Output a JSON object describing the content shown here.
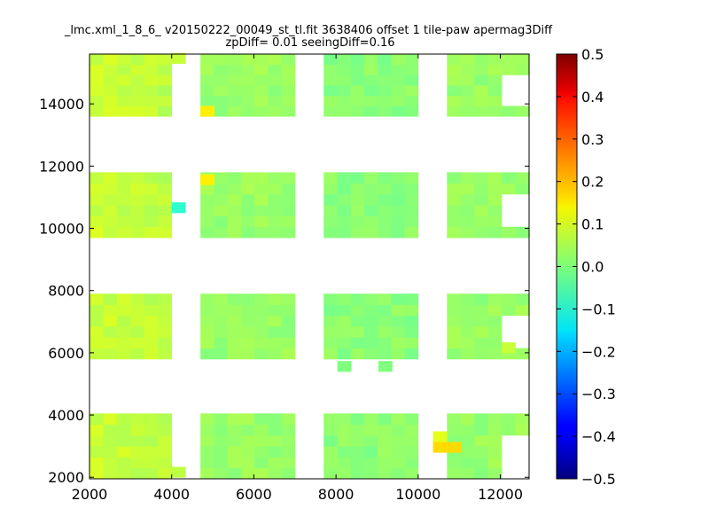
{
  "chart_data": {
    "type": "heatmap",
    "title": "_lmc.xml_1_8_6_ v20150222_00049_st_tl.fit 3638406 offset 1 tile-paw apermag3Diff",
    "subtitle": "zpDiff= 0.01 seeingDiff=0.16",
    "xlabel": "",
    "ylabel": "",
    "xlim": [
      2000,
      12700
    ],
    "ylim": [
      1950,
      15600
    ],
    "x_ticks": [
      "2000",
      "4000",
      "6000",
      "8000",
      "10000",
      "12000"
    ],
    "y_ticks": [
      "2000",
      "4000",
      "6000",
      "8000",
      "10000",
      "12000",
      "14000"
    ],
    "colorbar": {
      "colormap": "jet",
      "range": [
        -0.5,
        0.5
      ],
      "ticks": [
        "0.5",
        "0.4",
        "0.3",
        "0.2",
        "0.1",
        "0.0",
        "−0.1",
        "−0.2",
        "−0.3",
        "−0.4",
        "−0.5"
      ]
    },
    "cell_size": {
      "dx": 333,
      "dy": 335
    },
    "column_blocks": [
      {
        "x0": 2000,
        "x1": 4000,
        "cols": 6,
        "seed": 0.055
      },
      {
        "x0": 4700,
        "x1": 7000,
        "cols": 7,
        "seed": 0.025
      },
      {
        "x0": 7700,
        "x1": 10000,
        "cols": 7,
        "seed": 0.01
      },
      {
        "x0": 10700,
        "x1": 12700,
        "cols": 6,
        "seed": 0.025
      }
    ],
    "row_blocks": [
      {
        "y0": 13600,
        "y1": 15600,
        "rows": 6
      },
      {
        "y0": 9700,
        "y1": 11800,
        "rows": 6
      },
      {
        "y0": 5800,
        "y1": 7900,
        "rows": 6
      },
      {
        "y0": 1950,
        "y1": 4050,
        "rows": 6
      }
    ],
    "overrides": [
      {
        "x": 4700,
        "y": 13600,
        "value": 0.14
      },
      {
        "x": 4700,
        "y": 11400,
        "value": 0.14
      },
      {
        "x": 4000,
        "y": 10500,
        "value": -0.08
      },
      {
        "x": 10700,
        "y": 2800,
        "value": 0.16
      },
      {
        "x": 10360,
        "y": 3140,
        "value": 0.1
      },
      {
        "x": 10360,
        "y": 2800,
        "value": 0.16
      },
      {
        "x": 4000,
        "y": 2000,
        "value": 0.06
      },
      {
        "x": 3667,
        "y": 9700,
        "value": 0.08
      },
      {
        "x": 12033,
        "y": 6000,
        "value": 0.07
      },
      {
        "x": 8033,
        "y": 5400,
        "value": 0.0
      },
      {
        "x": 9033,
        "y": 5400,
        "value": 0.0
      },
      {
        "x": 4000,
        "y": 15300,
        "value": 0.07
      }
    ],
    "blank_cells": [
      {
        "x": 12033,
        "y": 14600
      },
      {
        "x": 12367,
        "y": 14600
      },
      {
        "x": 12033,
        "y": 14265
      },
      {
        "x": 12367,
        "y": 14265
      },
      {
        "x": 12033,
        "y": 13930
      },
      {
        "x": 12367,
        "y": 13930
      },
      {
        "x": 12033,
        "y": 10700
      },
      {
        "x": 12367,
        "y": 10700
      },
      {
        "x": 12033,
        "y": 10365
      },
      {
        "x": 12367,
        "y": 10365
      },
      {
        "x": 12033,
        "y": 10030
      },
      {
        "x": 12367,
        "y": 10030
      },
      {
        "x": 12033,
        "y": 6800
      },
      {
        "x": 12367,
        "y": 6800
      },
      {
        "x": 12033,
        "y": 6465
      },
      {
        "x": 12367,
        "y": 6465
      },
      {
        "x": 12033,
        "y": 6130
      },
      {
        "x": 12367,
        "y": 6130
      },
      {
        "x": 12033,
        "y": 3050
      },
      {
        "x": 12367,
        "y": 3050
      },
      {
        "x": 12033,
        "y": 2715
      },
      {
        "x": 12367,
        "y": 2715
      },
      {
        "x": 12033,
        "y": 2380
      },
      {
        "x": 12367,
        "y": 2380
      },
      {
        "x": 12033,
        "y": 2045
      },
      {
        "x": 12367,
        "y": 2045
      }
    ]
  }
}
